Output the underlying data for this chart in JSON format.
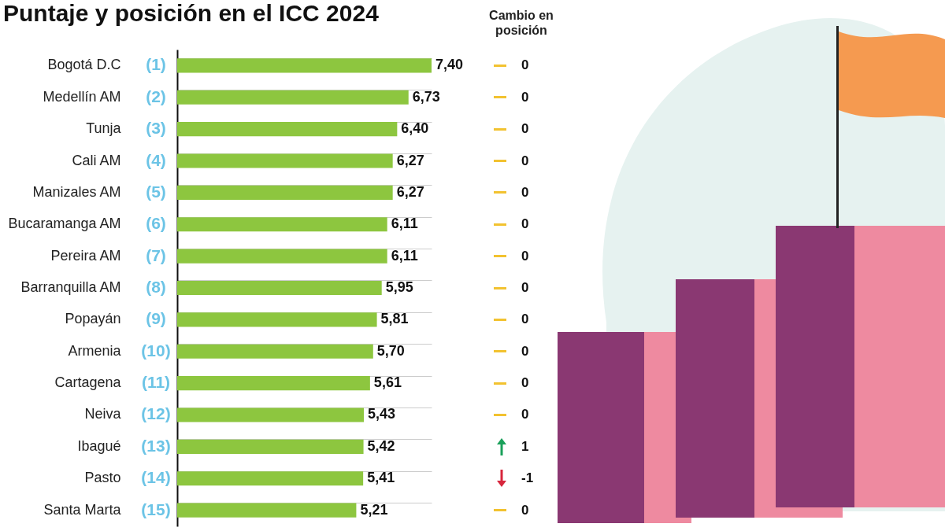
{
  "chart_data": {
    "type": "bar",
    "orientation": "horizontal",
    "title": "Puntaje y posición en el ICC 2024",
    "categories": [
      "Bogotá D.C",
      "Medellín AM",
      "Tunja",
      "Cali AM",
      "Manizales AM",
      "Bucaramanga AM",
      "Pereira AM",
      "Barranquilla AM",
      "Popayán",
      "Armenia",
      "Cartagena",
      "Neiva",
      "Ibagué",
      "Pasto",
      "Santa Marta"
    ],
    "values": [
      7.4,
      6.73,
      6.4,
      6.27,
      6.27,
      6.11,
      6.11,
      5.95,
      5.81,
      5.7,
      5.61,
      5.43,
      5.42,
      5.41,
      5.21
    ],
    "value_labels": [
      "7,40",
      "6,73",
      "6,40",
      "6,27",
      "6,27",
      "6,11",
      "6,11",
      "5,95",
      "5,81",
      "5,70",
      "5,61",
      "5,43",
      "5,42",
      "5,41",
      "5,21"
    ],
    "color": "#8dc63f",
    "grid": true,
    "annotations": [
      "Cambio en posición",
      "(1)",
      "(2)",
      "(3)",
      "(4)",
      "(5)",
      "(6)",
      "(7)",
      "(8)",
      "(9)",
      "(10)",
      "(11)",
      "(12)",
      "(13)",
      "(14)",
      "(15)",
      "0",
      "0",
      "0",
      "0",
      "0",
      "0",
      "0",
      "0",
      "0",
      "0",
      "0",
      "0",
      "1",
      "-1",
      "0"
    ]
  }
}
